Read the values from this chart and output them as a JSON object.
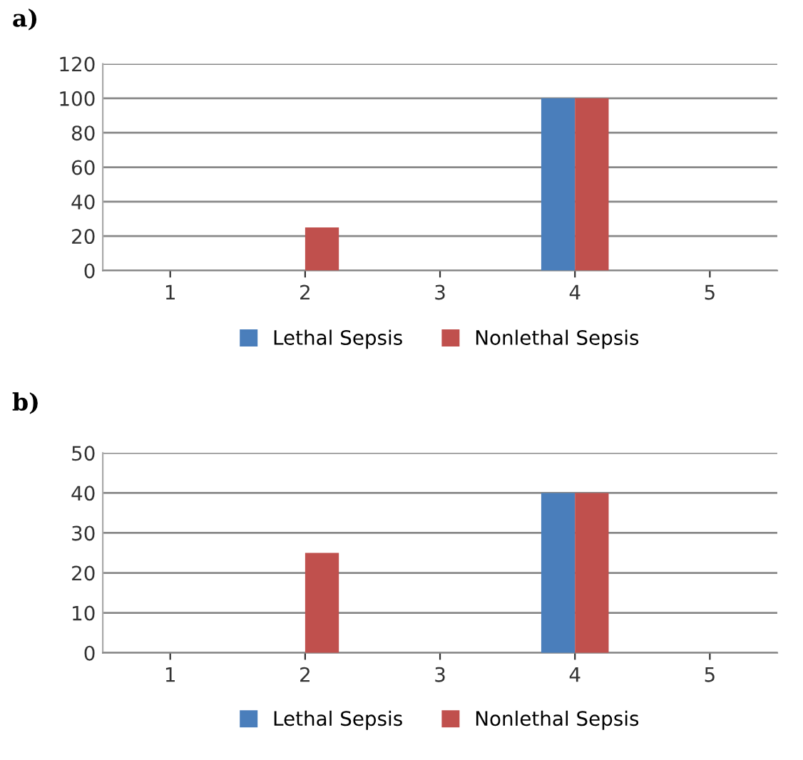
{
  "chart_data": [
    {
      "type": "bar",
      "title": "a)",
      "categories": [
        "1",
        "2",
        "3",
        "4",
        "5"
      ],
      "series": [
        {
          "name": "Lethal Sepsis",
          "color": "#4a7ebb",
          "values": [
            0,
            0,
            0,
            100,
            0
          ]
        },
        {
          "name": "Nonlethal Sepsis",
          "color": "#c0504d",
          "values": [
            0,
            25,
            0,
            100,
            0
          ]
        }
      ],
      "ylim": [
        0,
        120
      ],
      "yticks": [
        0,
        20,
        40,
        60,
        80,
        100,
        120
      ],
      "grid": "y",
      "legend": "bottom"
    },
    {
      "type": "bar",
      "title": "b)",
      "categories": [
        "1",
        "2",
        "3",
        "4",
        "5"
      ],
      "series": [
        {
          "name": "Lethal Sepsis",
          "color": "#4a7ebb",
          "values": [
            0,
            0,
            0,
            40,
            0
          ]
        },
        {
          "name": "Nonlethal Sepsis",
          "color": "#c0504d",
          "values": [
            0,
            25,
            0,
            40,
            0
          ]
        }
      ],
      "ylim": [
        0,
        50
      ],
      "yticks": [
        0,
        10,
        20,
        30,
        40,
        50
      ],
      "grid": "y",
      "legend": "bottom"
    }
  ]
}
